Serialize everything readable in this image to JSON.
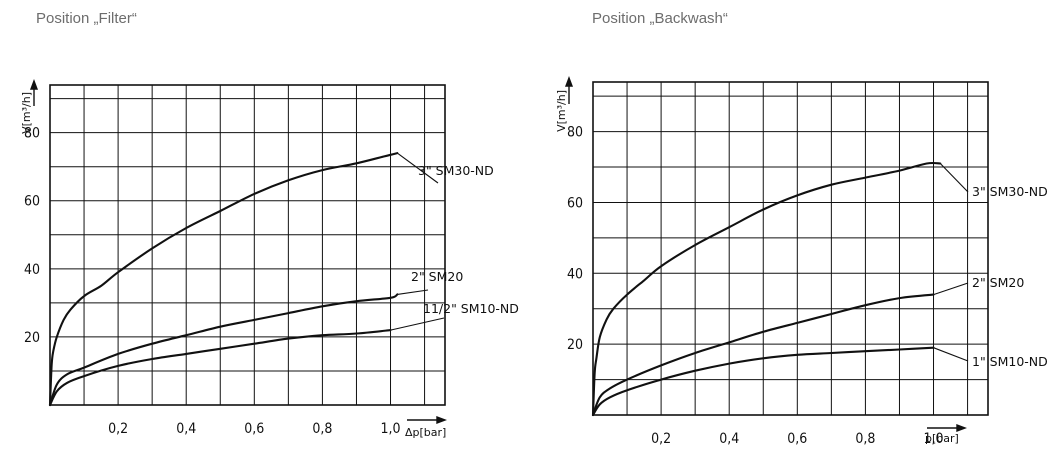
{
  "chart_data": [
    {
      "type": "line",
      "title": "Position „Filter“",
      "xlabel": "Δp[bar]",
      "ylabel": "V[m³/h]",
      "xlim": [
        0,
        1.16
      ],
      "ylim": [
        0,
        94
      ],
      "x_ticks": [
        "0,2",
        "0,4",
        "0,6",
        "0,8",
        "1,0"
      ],
      "x_tick_values": [
        0.2,
        0.4,
        0.6,
        0.8,
        1.0
      ],
      "y_ticks": [
        "20",
        "40",
        "60",
        "80"
      ],
      "y_tick_values": [
        20,
        40,
        60,
        80
      ],
      "grid": true,
      "series": [
        {
          "name": "3\" SM30-ND",
          "x": [
            0,
            0.005,
            0.01,
            0.02,
            0.04,
            0.06,
            0.1,
            0.15,
            0.2,
            0.3,
            0.4,
            0.5,
            0.6,
            0.7,
            0.8,
            0.9,
            0.98,
            1.02
          ],
          "y": [
            0,
            12,
            16,
            20,
            25,
            28,
            32,
            35,
            39,
            46,
            52,
            57,
            62,
            66,
            69,
            71,
            73,
            74
          ]
        },
        {
          "name": "2\" SM20",
          "x": [
            0,
            0.02,
            0.05,
            0.1,
            0.2,
            0.3,
            0.4,
            0.5,
            0.6,
            0.7,
            0.8,
            0.9,
            1.0,
            1.02
          ],
          "y": [
            0,
            6,
            9,
            11,
            15,
            18,
            20.5,
            23,
            25,
            27,
            29,
            30.5,
            31.5,
            32.5
          ]
        },
        {
          "name": "11/2\" SM10-ND",
          "x": [
            0,
            0.02,
            0.05,
            0.1,
            0.2,
            0.3,
            0.4,
            0.5,
            0.6,
            0.7,
            0.8,
            0.9,
            1.0
          ],
          "y": [
            0,
            4,
            6.5,
            8.5,
            11.5,
            13.5,
            15,
            16.5,
            18,
            19.5,
            20.5,
            21,
            22
          ]
        }
      ]
    },
    {
      "type": "line",
      "title": "Position „Backwash“",
      "xlabel": "p[bar]",
      "ylabel": "V[m³/h]",
      "xlim": [
        0,
        1.16
      ],
      "ylim": [
        0,
        94
      ],
      "x_ticks": [
        "0,2",
        "0,4",
        "0,6",
        "0,8",
        "1,0"
      ],
      "x_tick_values": [
        0.2,
        0.4,
        0.6,
        0.8,
        1.0
      ],
      "y_ticks": [
        "20",
        "40",
        "60",
        "80"
      ],
      "y_tick_values": [
        20,
        40,
        60,
        80
      ],
      "grid": true,
      "series": [
        {
          "name": "3\" SM30-ND",
          "x": [
            0,
            0.005,
            0.01,
            0.02,
            0.04,
            0.06,
            0.1,
            0.15,
            0.2,
            0.3,
            0.4,
            0.5,
            0.6,
            0.7,
            0.8,
            0.9,
            0.98,
            1.02
          ],
          "y": [
            0,
            12,
            16,
            22,
            27,
            30,
            34,
            38,
            42,
            48,
            53,
            58,
            62,
            65,
            67,
            69,
            71,
            71
          ]
        },
        {
          "name": "2\" SM20",
          "x": [
            0,
            0.02,
            0.05,
            0.1,
            0.2,
            0.3,
            0.4,
            0.5,
            0.6,
            0.7,
            0.8,
            0.9,
            1.0
          ],
          "y": [
            0,
            5,
            7.5,
            10,
            14,
            17.5,
            20.5,
            23.5,
            26,
            28.5,
            31,
            33,
            34
          ]
        },
        {
          "name": "1\" SM10-ND",
          "x": [
            0,
            0.02,
            0.05,
            0.1,
            0.2,
            0.3,
            0.4,
            0.5,
            0.6,
            0.7,
            0.8,
            0.9,
            1.0
          ],
          "y": [
            0,
            3,
            5,
            7,
            10,
            12.5,
            14.5,
            16,
            17,
            17.5,
            18,
            18.5,
            19
          ]
        }
      ]
    }
  ]
}
